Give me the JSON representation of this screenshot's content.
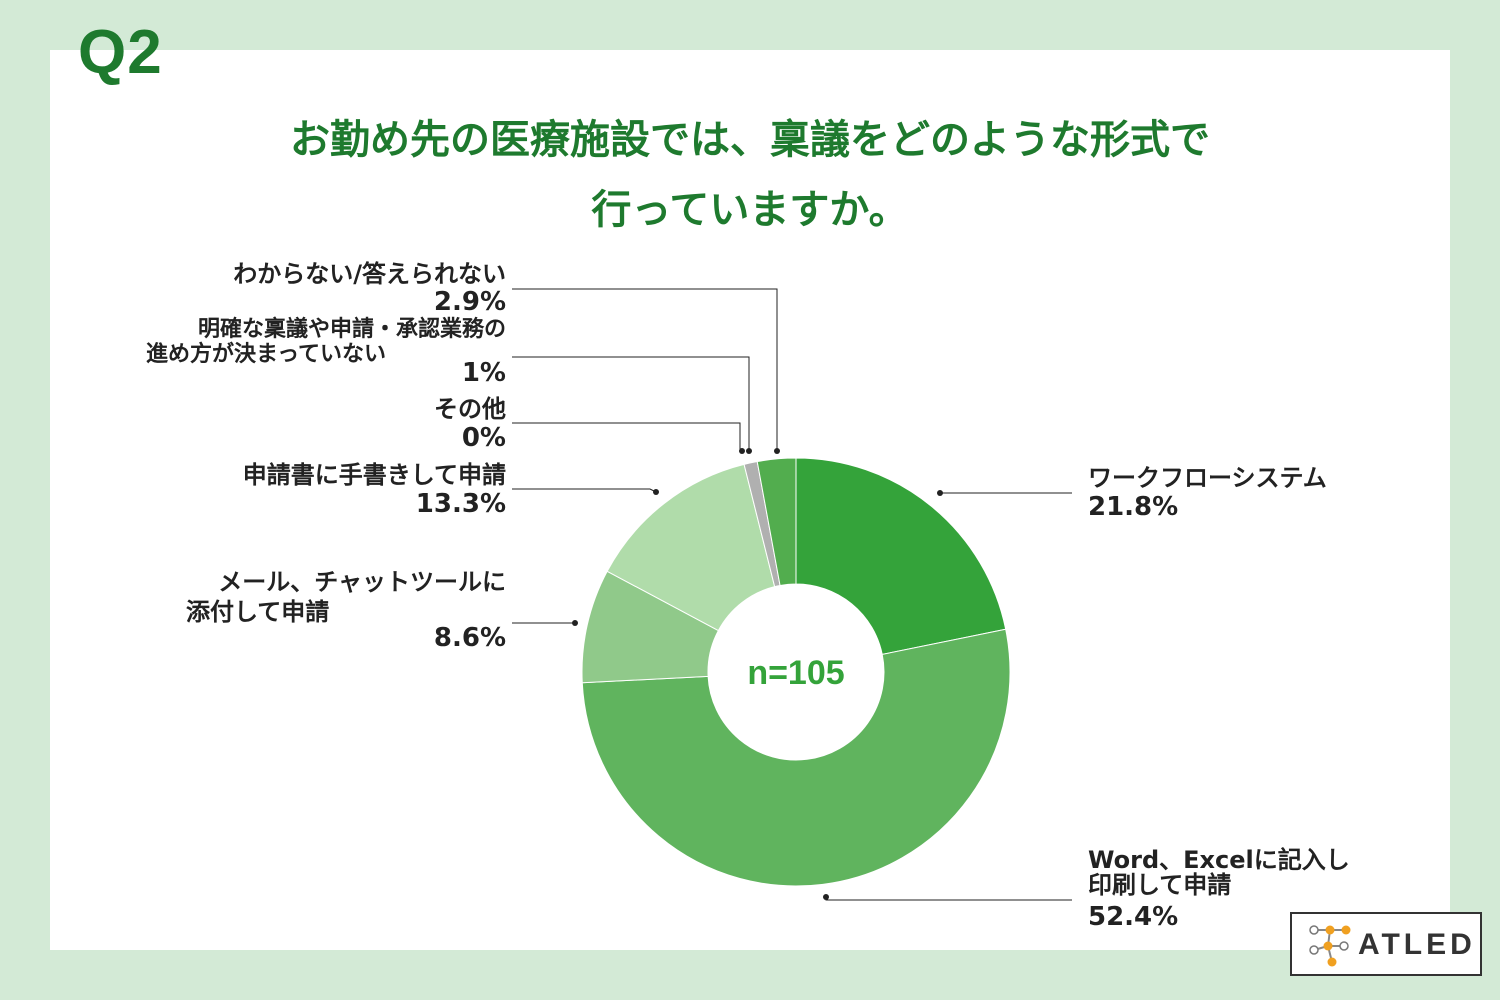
{
  "question_number": "Q2",
  "title_line1": "お勤め先の医療施設では、稟議をどのような形式で",
  "title_line2": "行っていますか。",
  "center_label": "n=105",
  "logo_text": "ATLED",
  "colors": {
    "background": "#d3ead6",
    "title": "#1e7a2e",
    "workflow": "#34a33a",
    "word_excel": "#60b45e",
    "mail_chat": "#90c98a",
    "handwritten": "#b0dcaa",
    "other": "#2e8b3a",
    "unclear": "#b0b0b0",
    "unknown": "#52ad4e"
  },
  "chart_data": {
    "type": "pie",
    "donut": true,
    "slices": [
      {
        "label_lines": [
          "ワークフローシステム"
        ],
        "value": 21.8,
        "display": "21.8%",
        "color": "#34a33a"
      },
      {
        "label_lines": [
          "Word、Excelに記入し",
          "印刷して申請"
        ],
        "value": 52.4,
        "display": "52.4%",
        "color": "#60b45e"
      },
      {
        "label_lines": [
          "メール、チャットツールに",
          "添付して申請"
        ],
        "value": 8.6,
        "display": "8.6%",
        "color": "#90c98a"
      },
      {
        "label_lines": [
          "申請書に手書きして申請"
        ],
        "value": 13.3,
        "display": "13.3%",
        "color": "#b0dcaa"
      },
      {
        "label_lines": [
          "その他"
        ],
        "value": 0,
        "display": "0%",
        "color": "#2e8b3a"
      },
      {
        "label_lines": [
          "明確な稟議や申請・承認業務の",
          "進め方が決まっていない"
        ],
        "value": 1,
        "display": "1%",
        "color": "#b0b0b0"
      },
      {
        "label_lines": [
          "わからない/答えられない"
        ],
        "value": 2.9,
        "display": "2.9%",
        "color": "#52ad4e"
      }
    ]
  }
}
